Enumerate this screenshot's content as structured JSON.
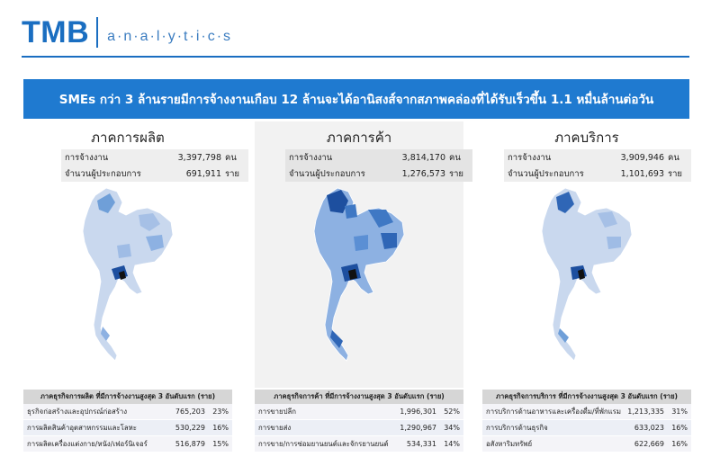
{
  "header": {
    "logo_main": "TMB",
    "logo_sub": "a·n·a·l·y·t·i·c·s"
  },
  "banner": {
    "text": "SMEs กว่า 3 ล้านรายมีการจ้างงานเกือบ 12 ล้านจะได้อานิสงส์จากสภาพคล่องที่ได้รับเร็วขึ้น 1.1 หมื่นล้านต่อวัน"
  },
  "colors": {
    "brand_blue": "#1a6ec1",
    "banner_blue": "#1f7ad0",
    "map_light": "#c9d8ee",
    "map_mid": "#6f9fd8",
    "map_dark": "#1d4f9f",
    "map_black": "#111111"
  },
  "panels": [
    {
      "title": "ภาคการผลิต",
      "employment_label": "การจ้างงาน",
      "employment_value": "3,397,798",
      "employment_unit": "คน",
      "operators_label": "จำนวนผู้ประกอบการ",
      "operators_value": "691,911",
      "operators_unit": "ราย",
      "table_title": "ภาคธุรกิจการผลิต ที่มีการจ้างงานสูงสุด 3 อันดับแรก (ราย)",
      "rows": [
        {
          "name": "ธุรกิจก่อสร้างและอุปกรณ์ก่อสร้าง",
          "value": "765,203",
          "pct": "23%"
        },
        {
          "name": "การผลิตสินค้าอุตสาหกรรมและโลหะ",
          "value": "530,229",
          "pct": "16%"
        },
        {
          "name": "การผลิตเครื่องแต่งกาย/หนัง/เฟอร์นิเจอร์",
          "value": "516,879",
          "pct": "15%"
        }
      ]
    },
    {
      "title": "ภาคการค้า",
      "employment_label": "การจ้างงาน",
      "employment_value": "3,814,170",
      "employment_unit": "คน",
      "operators_label": "จำนวนผู้ประกอบการ",
      "operators_value": "1,276,573",
      "operators_unit": "ราย",
      "table_title": "ภาคธุรกิจการค้า ที่มีการจ้างงานสูงสุด 3 อันดับแรก (ราย)",
      "rows": [
        {
          "name": "การขายปลีก",
          "value": "1,996,301",
          "pct": "52%"
        },
        {
          "name": "การขายส่ง",
          "value": "1,290,967",
          "pct": "34%"
        },
        {
          "name": "การขาย/การซ่อมยานยนต์และจักรยานยนต์",
          "value": "534,331",
          "pct": "14%"
        }
      ]
    },
    {
      "title": "ภาคบริการ",
      "employment_label": "การจ้างงาน",
      "employment_value": "3,909,946",
      "employment_unit": "คน",
      "operators_label": "จำนวนผู้ประกอบการ",
      "operators_value": "1,101,693",
      "operators_unit": "ราย",
      "table_title": "ภาคธุรกิจการบริการ ที่มีการจ้างงานสูงสุด 3 อันดับแรก (ราย)",
      "rows": [
        {
          "name": "การบริการด้านอาหารและเครื่องดื่ม/ที่พักแรม",
          "value": "1,213,335",
          "pct": "31%"
        },
        {
          "name": "การบริการด้านธุรกิจ",
          "value": "633,023",
          "pct": "16%"
        },
        {
          "name": "อสังหาริมทรัพย์",
          "value": "622,669",
          "pct": "16%"
        }
      ]
    }
  ]
}
